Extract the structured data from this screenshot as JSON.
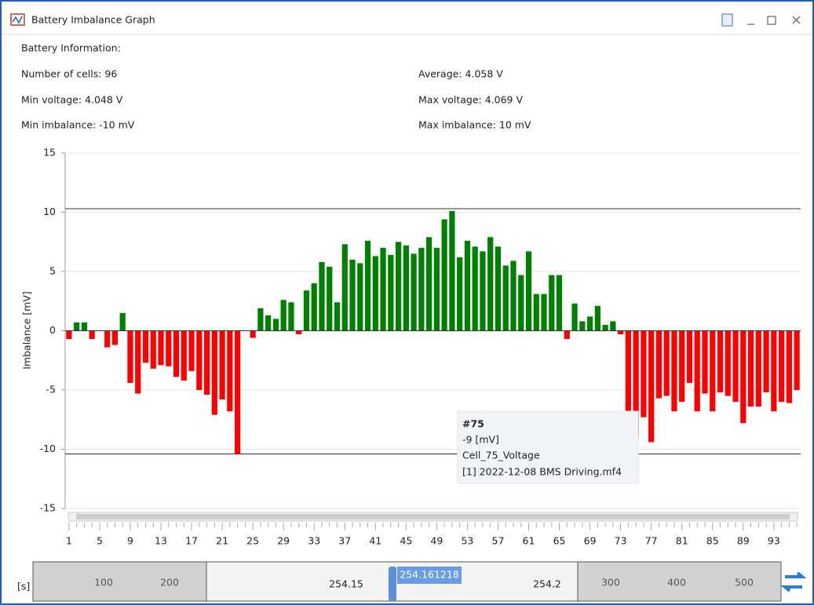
{
  "window": {
    "title": "Battery Imbalance Graph"
  },
  "info": {
    "heading": "Battery Information:",
    "cells": "Number of cells: 96",
    "average": "Average: 4.058 V",
    "min_voltage": "Min voltage: 4.048 V",
    "max_voltage": "Max voltage: 4.069 V",
    "min_imbalance": "Min imbalance: -10 mV",
    "max_imbalance": "Max imbalance: 10 mV"
  },
  "chart_data": {
    "type": "bar",
    "y_label": "Imbalance [mV]",
    "categories": [
      1,
      null,
      null,
      null,
      5,
      null,
      null,
      null,
      9,
      null,
      null,
      null,
      13,
      null,
      null,
      null,
      17,
      null,
      null,
      null,
      21,
      null,
      null,
      null,
      25,
      null,
      null,
      null,
      29,
      null,
      null,
      null,
      33,
      null,
      null,
      null,
      37,
      null,
      null,
      null,
      41,
      null,
      null,
      null,
      45,
      null,
      null,
      null,
      49,
      null,
      null,
      null,
      53,
      null,
      null,
      null,
      57,
      null,
      null,
      null,
      61,
      null,
      null,
      null,
      65,
      null,
      null,
      null,
      69,
      null,
      null,
      null,
      73,
      null,
      null,
      null,
      77,
      null,
      null,
      null,
      81,
      null,
      null,
      null,
      85,
      null,
      null,
      null,
      89,
      null,
      null,
      null,
      93,
      null,
      null,
      null
    ],
    "values": [
      -0.7,
      0.7,
      0.7,
      -0.7,
      0,
      -1.4,
      -1.2,
      1.5,
      -4.4,
      -5.3,
      -2.7,
      -3.2,
      -2.9,
      -3.0,
      -3.9,
      -4.2,
      -3.4,
      -5.0,
      -5.4,
      -7.1,
      -5.8,
      -6.8,
      -10.4,
      0,
      -0.6,
      1.9,
      1.3,
      1.0,
      2.6,
      2.4,
      -0.3,
      3.4,
      4.0,
      5.8,
      5.4,
      2.4,
      7.3,
      6.0,
      5.7,
      7.6,
      6.3,
      7.0,
      6.4,
      7.5,
      7.2,
      6.5,
      7.0,
      7.9,
      7.0,
      9.4,
      10.1,
      6.2,
      7.6,
      7.1,
      6.7,
      7.9,
      7.1,
      5.5,
      5.9,
      4.7,
      6.7,
      3.1,
      3.1,
      4.7,
      4.7,
      -0.7,
      2.3,
      0.8,
      1.2,
      2.1,
      0.5,
      0.8,
      -0.3,
      -6.8,
      -9,
      -7.3,
      -9.4,
      -5.7,
      -5.5,
      -6.8,
      -6.0,
      -4.4,
      -6.8,
      -5.3,
      -6.8,
      -5.2,
      -5.5,
      -6.0,
      -7.8,
      -6.4,
      -6.4,
      -5.2,
      -6.8,
      -6.0,
      -6.1,
      -5.0
    ],
    "positive_color": "#008000",
    "negative_color": "#ff0000",
    "ylim": [
      -15,
      15
    ],
    "yticks": [
      -15,
      -10,
      -5,
      0,
      5,
      10,
      15
    ],
    "grid": true,
    "reference_lines": [
      10.3,
      -10.4
    ],
    "tooltip": {
      "title": "#75",
      "value": "-9 [mV]",
      "signal": "Cell_75_Voltage",
      "file": "[1] 2022-12-08 BMS Driving.mf4"
    }
  },
  "timeline": {
    "unit": "[s]",
    "left_labels": [
      "100",
      "200"
    ],
    "center_labels": [
      "254.15",
      "254.2"
    ],
    "cursor": "254.161218",
    "right_labels": [
      "300",
      "400",
      "500"
    ]
  }
}
